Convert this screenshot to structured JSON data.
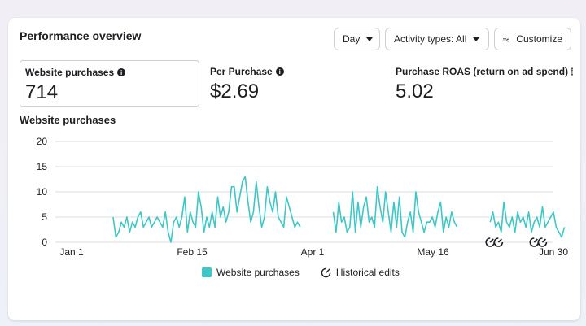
{
  "header": {
    "title": "Performance overview",
    "day_label": "Day",
    "activity_label": "Activity types: All",
    "customize_label": "Customize"
  },
  "metrics": [
    {
      "label": "Website purchases",
      "value": "714"
    },
    {
      "label": "Per Purchase",
      "value": "$2.69"
    },
    {
      "label": "Purchase ROAS (return on ad spend)",
      "value": "5.02"
    }
  ],
  "colors": {
    "series": "#3ec7c7",
    "grid": "#dadde1"
  },
  "legend": {
    "series_label": "Website purchases",
    "edits_label": "Historical edits"
  },
  "chart_data": {
    "type": "line",
    "title": "Website purchases",
    "ylim": [
      0,
      20
    ],
    "yticks": [
      0,
      5,
      10,
      15,
      20
    ],
    "xlim": [
      "2024-01-01",
      "2024-06-30"
    ],
    "xticks": [
      "Jan 1",
      "Feb 15",
      "Apr 1",
      "May 16",
      "Jun 30"
    ],
    "series": [
      {
        "name": "Website purchases",
        "segments": [
          {
            "start": "2024-01-22",
            "values": [
              5,
              1,
              2,
              4,
              3,
              5,
              2,
              4,
              3,
              5,
              6,
              3,
              4,
              5,
              3,
              4,
              5,
              4,
              3,
              6,
              2,
              0,
              4,
              5,
              3,
              5,
              9,
              2,
              6,
              4,
              3,
              10,
              7,
              2,
              5,
              3,
              6,
              3,
              9,
              5,
              7,
              4,
              6,
              11,
              11,
              6,
              9,
              12,
              13,
              8,
              4,
              6,
              12,
              7,
              3,
              5,
              11,
              8,
              6,
              10,
              5,
              4,
              3,
              9,
              7,
              5,
              3,
              4,
              3
            ]
          },
          {
            "start": "2024-04-11",
            "values": [
              6,
              2,
              8,
              4,
              5,
              2,
              3,
              10,
              2,
              8,
              3,
              7,
              9,
              4,
              5,
              3,
              11,
              7,
              4,
              10,
              6,
              2,
              8,
              3,
              9,
              2,
              1,
              4,
              6,
              2,
              10,
              6,
              4,
              2,
              4,
              4,
              5,
              3,
              6,
              8,
              2,
              5,
              3,
              6,
              4,
              3
            ]
          },
          {
            "start": "2024-06-07",
            "values": [
              4,
              6,
              3,
              4,
              2,
              8,
              4,
              3,
              5,
              2,
              6,
              4,
              5,
              3,
              6,
              2,
              4,
              5,
              3,
              7,
              3,
              4,
              5,
              6,
              3,
              2,
              1,
              3
            ]
          }
        ]
      }
    ],
    "historical_edits": 4
  }
}
